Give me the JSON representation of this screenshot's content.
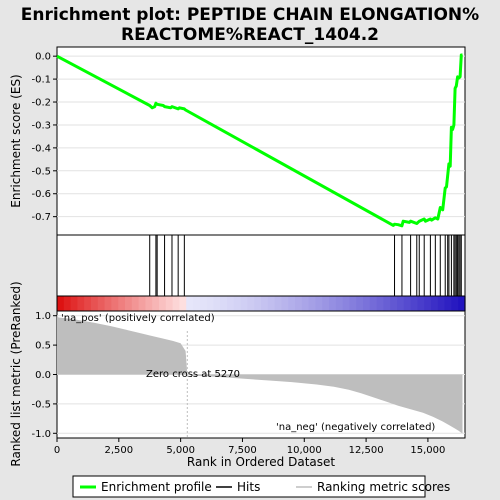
{
  "title_line1": "Enrichment plot: PEPTIDE CHAIN ELONGATION%",
  "title_line2": "REACTOME%REACT_1404.2",
  "colors": {
    "background": "#e6e6e6",
    "enrichment_line": "#00ff00",
    "hits": "#000000",
    "ranked_fill": "#bebebe",
    "zero_cross_line": "#bebebe"
  },
  "legend": {
    "items": [
      {
        "label": "Enrichment profile",
        "color": "#00ff00",
        "style": "line"
      },
      {
        "label": "Hits",
        "color": "#000000",
        "style": "line"
      },
      {
        "label": "Ranking metric scores",
        "color": "#bebebe",
        "style": "line"
      }
    ]
  },
  "chart_data": [
    {
      "type": "line",
      "panel": "enrichment-profile",
      "ylabel": "Enrichment score (ES)",
      "xlim": [
        0,
        16500
      ],
      "ylim": [
        -0.78,
        0.04
      ],
      "yticks": [
        0.0,
        -0.1,
        -0.2,
        -0.3,
        -0.4,
        -0.5,
        -0.6,
        -0.7
      ],
      "ytick_labels": [
        "0.0",
        "-0.1",
        "-0.2",
        "-0.3",
        "-0.4",
        "-0.5",
        "-0.6",
        "-0.7"
      ],
      "series": [
        {
          "x": [
            0,
            3750,
            3850,
            3950,
            4000,
            4050,
            4300,
            4350,
            4600,
            4650,
            4900,
            4950,
            5150,
            5200,
            13600,
            13650,
            13800,
            13950,
            14000,
            14250,
            14300,
            14550,
            14650,
            14850,
            14900,
            15100,
            15150,
            15300,
            15400,
            15500,
            15600,
            15700,
            15750,
            15850,
            15900,
            15950,
            16000,
            16050,
            16100,
            16150,
            16200,
            16250,
            16300,
            16350,
            16400
          ],
          "y": [
            0.0,
            -0.215,
            -0.225,
            -0.22,
            -0.205,
            -0.21,
            -0.215,
            -0.22,
            -0.225,
            -0.22,
            -0.23,
            -0.225,
            -0.23,
            -0.235,
            -0.738,
            -0.733,
            -0.735,
            -0.74,
            -0.72,
            -0.725,
            -0.72,
            -0.73,
            -0.72,
            -0.71,
            -0.72,
            -0.71,
            -0.715,
            -0.705,
            -0.71,
            -0.66,
            -0.67,
            -0.575,
            -0.57,
            -0.47,
            -0.48,
            -0.31,
            -0.32,
            -0.3,
            -0.14,
            -0.13,
            -0.09,
            -0.095,
            -0.09,
            0.005,
            0.005
          ]
        }
      ],
      "hit_positions": [
        3750,
        4000,
        4050,
        4350,
        4650,
        4900,
        5150,
        13650,
        13950,
        14300,
        14550,
        14650,
        14850,
        15100,
        15300,
        15500,
        15700,
        15800,
        15850,
        15950,
        16050,
        16100,
        16150,
        16200,
        16250,
        16300,
        16350
      ]
    },
    {
      "type": "area",
      "panel": "ranked-list-metric",
      "xlabel": "Rank in Ordered Dataset",
      "ylabel": "Ranked list metric (PreRanked)",
      "xlim": [
        0,
        16500
      ],
      "ylim": [
        -1.08,
        1.08
      ],
      "xticks": [
        0,
        2500,
        5000,
        7500,
        10000,
        12500,
        15000
      ],
      "xtick_labels": [
        "0",
        "2,500",
        "5,000",
        "7,500",
        "10,000",
        "12,500",
        "15,000"
      ],
      "yticks": [
        1.0,
        0.5,
        0.0,
        -0.5,
        -1.0
      ],
      "ytick_labels": [
        "1.0",
        "0.5",
        "0.0",
        "-0.5",
        "-1.0"
      ],
      "x": [
        0,
        60,
        300,
        800,
        1500,
        2200,
        2800,
        3300,
        3800,
        4300,
        4700,
        5000,
        5200,
        5270,
        5500,
        6500,
        7500,
        8500,
        9500,
        10500,
        11200,
        11800,
        12300,
        12800,
        13300,
        13800,
        14300,
        14800,
        15200,
        15600,
        15900,
        16100,
        16250,
        16350,
        16400
      ],
      "values": [
        1.0,
        0.97,
        0.96,
        0.93,
        0.88,
        0.82,
        0.76,
        0.71,
        0.66,
        0.61,
        0.57,
        0.53,
        0.4,
        0.0,
        -0.02,
        -0.04,
        -0.07,
        -0.1,
        -0.13,
        -0.17,
        -0.21,
        -0.26,
        -0.32,
        -0.39,
        -0.46,
        -0.53,
        -0.59,
        -0.65,
        -0.72,
        -0.8,
        -0.87,
        -0.92,
        -0.96,
        -0.99,
        -1.0
      ],
      "zero_cross_rank": 5270,
      "annotations": {
        "pos": "'na_pos' (positively correlated)",
        "zero": "Zero cross at 5270",
        "neg": "'na_neg' (negatively correlated)"
      }
    }
  ]
}
